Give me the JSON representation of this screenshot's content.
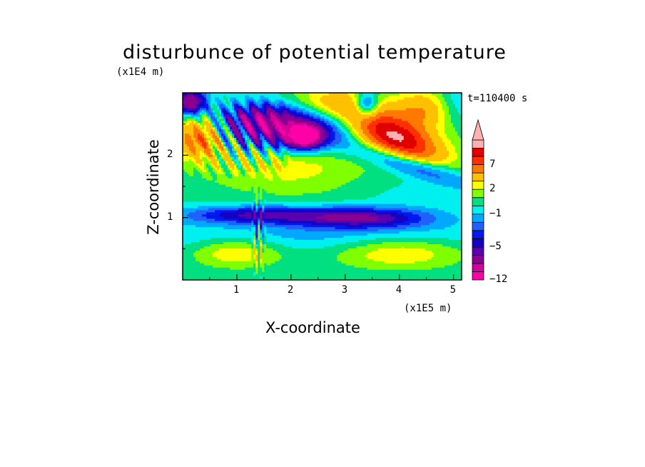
{
  "chart_data": {
    "type": "heatmap",
    "title": "disturbunce of potential temperature",
    "xlabel": "X-coordinate",
    "ylabel": "Z-coordinate",
    "x_unit": "(x1E5 m)",
    "y_unit": "(x1E4 m)",
    "annotation": "t=110400 s",
    "xlim": [
      0,
      5.15
    ],
    "ylim": [
      0,
      3.0
    ],
    "x_ticks": [
      "1",
      "2",
      "3",
      "4",
      "5"
    ],
    "x_tick_values": [
      1,
      2,
      3,
      4,
      5
    ],
    "y_ticks": [
      "1",
      "2"
    ],
    "y_tick_values": [
      1,
      2
    ],
    "colorbar": {
      "levels": [
        -12,
        -10,
        -8,
        -6,
        -5,
        -4,
        -3,
        -2,
        -1,
        0,
        1,
        2,
        3,
        5,
        7,
        9,
        11
      ],
      "labels": [
        "7",
        "2",
        "-1",
        "-5",
        "-12"
      ],
      "label_values": [
        7,
        2,
        -1,
        -5,
        -12
      ],
      "colors": [
        "#ff00a8",
        "#d1009c",
        "#8a0090",
        "#5a00b0",
        "#1800c0",
        "#0018f0",
        "#2060ff",
        "#00a8ff",
        "#00f0f0",
        "#00e080",
        "#80ff00",
        "#ffff00",
        "#ffc000",
        "#ff7800",
        "#ff3000",
        "#e00000",
        "#ffb0b0"
      ],
      "extend": "max",
      "placement": "right"
    },
    "features": [
      {
        "x": 3.9,
        "z": 2.3,
        "value": 8,
        "sx": 0.55,
        "sz": 0.22,
        "tilt": -0.35
      },
      {
        "x": 3.7,
        "z": 2.45,
        "value": 4,
        "sx": 0.9,
        "sz": 0.35,
        "tilt": -0.3
      },
      {
        "x": 4.2,
        "z": 1.85,
        "value": -5,
        "sx": 0.7,
        "sz": 0.13,
        "tilt": -0.25
      },
      {
        "x": 2.0,
        "z": 2.4,
        "value": -8,
        "sx": 0.85,
        "sz": 0.25,
        "tilt": 0.0
      },
      {
        "x": 2.25,
        "z": 2.3,
        "value": -10,
        "sx": 0.2,
        "sz": 0.12,
        "tilt": 0.0
      },
      {
        "x": 1.5,
        "z": 2.65,
        "value": -4,
        "sx": 0.6,
        "sz": 0.18,
        "tilt": 0.1
      },
      {
        "x": 0.3,
        "z": 2.3,
        "value": 7,
        "sx": 0.35,
        "sz": 0.25,
        "tilt": 0.0
      },
      {
        "x": 1.9,
        "z": 1.95,
        "value": 3,
        "sx": 0.9,
        "sz": 0.25,
        "tilt": 0.0
      },
      {
        "x": 1.3,
        "z": 1.05,
        "value": -5,
        "sx": 0.9,
        "sz": 0.1,
        "tilt": 0.0
      },
      {
        "x": 3.3,
        "z": 1.0,
        "value": -6,
        "sx": 0.9,
        "sz": 0.12,
        "tilt": 0.0
      },
      {
        "x": 2.4,
        "z": 1.5,
        "value": 1,
        "sx": 1.8,
        "sz": 0.25,
        "tilt": 0.0
      },
      {
        "x": 4.3,
        "z": 1.45,
        "value": -1,
        "sx": 0.9,
        "sz": 0.2,
        "tilt": 0.0
      },
      {
        "x": 2.6,
        "z": 0.7,
        "value": -1.5,
        "sx": 2.6,
        "sz": 0.17,
        "tilt": 0.0
      },
      {
        "x": 1.0,
        "z": 0.45,
        "value": 3,
        "sx": 0.6,
        "sz": 0.18,
        "tilt": 0.0
      },
      {
        "x": 4.0,
        "z": 0.45,
        "value": 3,
        "sx": 0.9,
        "sz": 0.2,
        "tilt": 0.0
      },
      {
        "x": 3.4,
        "z": 2.8,
        "value": -6,
        "sx": 0.15,
        "sz": 0.15,
        "tilt": 0.0
      },
      {
        "x": 4.4,
        "z": 2.75,
        "value": 4,
        "sx": 0.35,
        "sz": 0.22,
        "tilt": 0.0
      },
      {
        "x": 0.15,
        "z": 2.85,
        "value": -8,
        "sx": 0.2,
        "sz": 0.15,
        "tilt": 0.0
      },
      {
        "x": 2.4,
        "z": 2.8,
        "value": 3,
        "sx": 0.6,
        "sz": 0.18,
        "tilt": 0.0
      },
      {
        "x": 5.05,
        "z": 2.85,
        "value": -1,
        "sx": 0.2,
        "sz": 0.2,
        "tilt": 0.0
      }
    ],
    "waves": [
      {
        "x0": 0.0,
        "x1": 2.1,
        "z0": 1.6,
        "z1": 3.0,
        "amplitude": 4,
        "kx": 22,
        "kz": 14
      },
      {
        "x0": 1.25,
        "x1": 1.55,
        "z0": 0.0,
        "z1": 1.6,
        "amplitude": 3,
        "kx": 60,
        "kz": 6
      }
    ]
  }
}
